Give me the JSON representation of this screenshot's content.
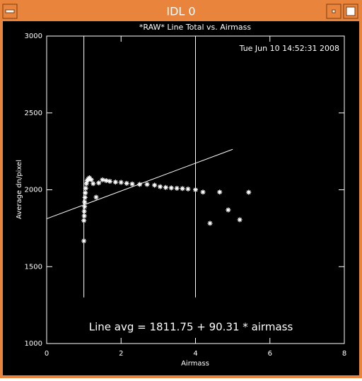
{
  "window_title": "IDL 0",
  "chart_data": {
    "type": "scatter",
    "title": "*RAW* Line Total vs. Airmass",
    "timestamp": "Tue Jun 10 14:52:31 2008",
    "annotation": "Line avg = 1811.75 + 90.31 * airmass",
    "x_label": "Airmass",
    "y_label": "Average dn/pixel",
    "xlim": [
      0,
      8
    ],
    "ylim": [
      1000,
      3000
    ],
    "xticks": [
      0,
      2,
      4,
      6,
      8
    ],
    "yticks": [
      1000,
      1500,
      2000,
      2500,
      3000
    ],
    "color": "#ffffff",
    "x": [
      1.0,
      1.0,
      1.01,
      1.01,
      1.02,
      1.02,
      1.03,
      1.04,
      1.05,
      1.07,
      1.09,
      1.12,
      1.15,
      1.2,
      1.25,
      1.33,
      1.4,
      1.5,
      1.6,
      1.7,
      1.85,
      2.0,
      2.15,
      2.3,
      2.5,
      2.7,
      2.9,
      3.05,
      3.2,
      3.35,
      3.5,
      3.65,
      3.8,
      4.0,
      4.2,
      4.39,
      4.65,
      4.88,
      5.19,
      5.43
    ],
    "values": [
      1667,
      1800,
      1830,
      1860,
      1890,
      1920,
      1950,
      1980,
      2010,
      2040,
      2060,
      2070,
      2078,
      2065,
      2040,
      1952,
      2045,
      2065,
      2060,
      2055,
      2050,
      2048,
      2042,
      2038,
      2035,
      2035,
      2030,
      2020,
      2015,
      2012,
      2010,
      2008,
      2005,
      2000,
      1985,
      1782,
      1985,
      1869,
      1805,
      1984
    ],
    "lines": [
      {
        "x": [
          0,
          5
        ],
        "values": [
          1811.75,
          2263.3
        ]
      },
      {
        "x": [
          1,
          1
        ],
        "values": [
          1300,
          3000
        ]
      },
      {
        "x": [
          4,
          4
        ],
        "values": [
          1300,
          3000
        ]
      }
    ]
  }
}
